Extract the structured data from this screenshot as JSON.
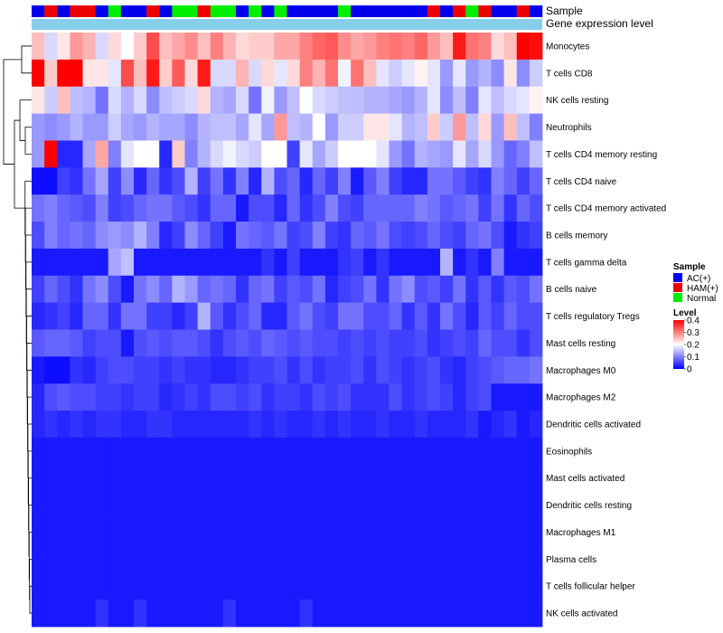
{
  "chart_data": {
    "type": "heatmap",
    "title": "",
    "annotation_labels": {
      "sample": "Sample",
      "group": "Gene expression level"
    },
    "sample_groups": [
      {
        "name": "AC(+)",
        "color": "#0000EE"
      },
      {
        "name": "HAM(+)",
        "color": "#EE0000"
      },
      {
        "name": "Normal",
        "color": "#00EE00"
      }
    ],
    "group_annotation_color": "#87CEEB",
    "sample_annotation": [
      "AC(+)",
      "HAM(+)",
      "AC(+)",
      "HAM(+)",
      "HAM(+)",
      "AC(+)",
      "Normal",
      "AC(+)",
      "AC(+)",
      "HAM(+)",
      "AC(+)",
      "Normal",
      "Normal",
      "HAM(+)",
      "Normal",
      "Normal",
      "AC(+)",
      "Normal",
      "AC(+)",
      "Normal",
      "AC(+)",
      "AC(+)",
      "AC(+)",
      "AC(+)",
      "Normal",
      "AC(+)",
      "AC(+)",
      "AC(+)",
      "AC(+)",
      "AC(+)",
      "AC(+)",
      "HAM(+)",
      "AC(+)",
      "HAM(+)",
      "Normal",
      "HAM(+)",
      "AC(+)",
      "AC(+)",
      "HAM(+)",
      "AC(+)"
    ],
    "rows": [
      "Monocytes",
      "T cells CD8",
      "NK cells resting",
      "Neutrophils",
      "T cells CD4 memory resting",
      "T cells CD4 naive",
      "T cells CD4 memory activated",
      "B cells memory",
      "T cells gamma delta",
      "B cells naive",
      "T cells regulatory  Tregs",
      "Mast cells resting",
      "Macrophages M0",
      "Macrophages M2",
      "Dendritic cells activated",
      "Eosinophils",
      "Mast cells activated",
      "Dendritic cells resting",
      "Macrophages M1",
      "Plasma cells",
      "T cells follicular helper",
      "NK cells activated"
    ],
    "values": [
      [
        0.25,
        0.17,
        0.22,
        0.28,
        0.26,
        0.17,
        0.23,
        0.2,
        0.24,
        0.34,
        0.25,
        0.27,
        0.29,
        0.25,
        0.3,
        0.26,
        0.23,
        0.24,
        0.24,
        0.27,
        0.27,
        0.3,
        0.32,
        0.33,
        0.29,
        0.27,
        0.28,
        0.3,
        0.31,
        0.3,
        0.32,
        0.28,
        0.25,
        0.38,
        0.31,
        0.3,
        0.23,
        0.25,
        0.4,
        0.39
      ],
      [
        0.4,
        0.24,
        0.4,
        0.4,
        0.22,
        0.22,
        0.18,
        0.34,
        0.25,
        0.38,
        0.24,
        0.33,
        0.23,
        0.38,
        0.17,
        0.17,
        0.26,
        0.17,
        0.23,
        0.18,
        0.23,
        0.3,
        0.26,
        0.31,
        0.19,
        0.31,
        0.25,
        0.18,
        0.16,
        0.18,
        0.21,
        0.18,
        0.12,
        0.18,
        0.12,
        0.14,
        0.11,
        0.22,
        0.11,
        0.16
      ],
      [
        0.22,
        0.16,
        0.25,
        0.15,
        0.14,
        0.09,
        0.17,
        0.14,
        0.17,
        0.11,
        0.15,
        0.16,
        0.17,
        0.23,
        0.14,
        0.13,
        0.17,
        0.09,
        0.19,
        0.12,
        0.15,
        0.2,
        0.17,
        0.16,
        0.15,
        0.15,
        0.14,
        0.14,
        0.13,
        0.12,
        0.14,
        0.18,
        0.11,
        0.15,
        0.1,
        0.18,
        0.15,
        0.17,
        0.18,
        0.21
      ],
      [
        0.12,
        0.11,
        0.12,
        0.14,
        0.12,
        0.12,
        0.16,
        0.13,
        0.12,
        0.14,
        0.13,
        0.13,
        0.11,
        0.14,
        0.15,
        0.15,
        0.13,
        0.18,
        0.13,
        0.28,
        0.15,
        0.14,
        0.2,
        0.12,
        0.16,
        0.16,
        0.22,
        0.22,
        0.18,
        0.14,
        0.15,
        0.24,
        0.16,
        0.28,
        0.15,
        0.23,
        0.12,
        0.25,
        0.15,
        0.1
      ],
      [
        0.12,
        0.4,
        0.03,
        0.03,
        0.13,
        0.27,
        0.1,
        0.18,
        0.2,
        0.2,
        0.03,
        0.24,
        0.1,
        0.14,
        0.17,
        0.19,
        0.17,
        0.16,
        0.2,
        0.2,
        0.05,
        0.18,
        0.13,
        0.16,
        0.2,
        0.2,
        0.2,
        0.18,
        0.12,
        0.09,
        0.14,
        0.13,
        0.12,
        0.18,
        0.13,
        0.17,
        0.12,
        0.08,
        0.1,
        0.15
      ],
      [
        0.01,
        0.01,
        0.05,
        0.04,
        0.09,
        0.13,
        0.05,
        0.11,
        0.03,
        0.08,
        0.04,
        0.06,
        0.14,
        0.05,
        0.09,
        0.04,
        0.1,
        0.03,
        0.14,
        0.06,
        0.08,
        0.03,
        0.08,
        0.05,
        0.1,
        0.02,
        0.07,
        0.1,
        0.05,
        0.03,
        0.03,
        0.09,
        0.09,
        0.07,
        0.05,
        0.04,
        0.1,
        0.08,
        0.05,
        0.08
      ],
      [
        0.09,
        0.1,
        0.08,
        0.07,
        0.06,
        0.1,
        0.05,
        0.06,
        0.08,
        0.09,
        0.09,
        0.07,
        0.06,
        0.04,
        0.08,
        0.08,
        0.02,
        0.06,
        0.06,
        0.03,
        0.08,
        0.04,
        0.06,
        0.1,
        0.06,
        0.05,
        0.08,
        0.08,
        0.08,
        0.08,
        0.1,
        0.09,
        0.07,
        0.08,
        0.09,
        0.05,
        0.09,
        0.04,
        0.08,
        0.06
      ],
      [
        0.06,
        0.1,
        0.08,
        0.09,
        0.08,
        0.11,
        0.12,
        0.11,
        0.14,
        0.1,
        0.03,
        0.05,
        0.11,
        0.08,
        0.05,
        0.02,
        0.09,
        0.08,
        0.07,
        0.09,
        0.05,
        0.06,
        0.1,
        0.05,
        0.04,
        0.08,
        0.07,
        0.09,
        0.06,
        0.05,
        0.06,
        0.08,
        0.06,
        0.05,
        0.08,
        0.09,
        0.06,
        0.02,
        0.04,
        0.05
      ],
      [
        0.02,
        0.02,
        0.02,
        0.02,
        0.02,
        0.02,
        0.13,
        0.15,
        0.02,
        0.02,
        0.02,
        0.02,
        0.02,
        0.02,
        0.02,
        0.02,
        0.02,
        0.02,
        0.04,
        0.02,
        0.05,
        0.02,
        0.02,
        0.02,
        0.04,
        0.05,
        0.02,
        0.04,
        0.02,
        0.02,
        0.02,
        0.02,
        0.14,
        0.02,
        0.04,
        0.02,
        0.1,
        0.02,
        0.02,
        0.02
      ],
      [
        0.05,
        0.08,
        0.06,
        0.04,
        0.09,
        0.11,
        0.06,
        0.02,
        0.09,
        0.11,
        0.08,
        0.14,
        0.12,
        0.08,
        0.09,
        0.08,
        0.04,
        0.08,
        0.09,
        0.05,
        0.07,
        0.06,
        0.09,
        0.03,
        0.05,
        0.06,
        0.09,
        0.04,
        0.09,
        0.11,
        0.06,
        0.07,
        0.05,
        0.09,
        0.04,
        0.07,
        0.04,
        0.07,
        0.06,
        0.09
      ],
      [
        0.03,
        0.04,
        0.05,
        0.03,
        0.08,
        0.08,
        0.04,
        0.09,
        0.09,
        0.05,
        0.05,
        0.03,
        0.05,
        0.14,
        0.07,
        0.04,
        0.06,
        0.08,
        0.03,
        0.03,
        0.07,
        0.09,
        0.06,
        0.05,
        0.09,
        0.09,
        0.06,
        0.06,
        0.08,
        0.04,
        0.07,
        0.04,
        0.09,
        0.06,
        0.03,
        0.07,
        0.05,
        0.08,
        0.06,
        0.06
      ],
      [
        0.07,
        0.08,
        0.08,
        0.07,
        0.05,
        0.06,
        0.06,
        0.02,
        0.06,
        0.07,
        0.06,
        0.07,
        0.07,
        0.06,
        0.04,
        0.06,
        0.07,
        0.06,
        0.08,
        0.07,
        0.06,
        0.07,
        0.06,
        0.06,
        0.05,
        0.06,
        0.05,
        0.06,
        0.05,
        0.05,
        0.06,
        0.04,
        0.05,
        0.06,
        0.05,
        0.08,
        0.06,
        0.06,
        0.04,
        0.06
      ],
      [
        0.02,
        0.01,
        0.01,
        0.04,
        0.03,
        0.05,
        0.06,
        0.06,
        0.05,
        0.05,
        0.04,
        0.05,
        0.04,
        0.04,
        0.03,
        0.03,
        0.04,
        0.05,
        0.05,
        0.06,
        0.04,
        0.06,
        0.04,
        0.05,
        0.05,
        0.06,
        0.04,
        0.06,
        0.05,
        0.04,
        0.05,
        0.06,
        0.04,
        0.03,
        0.05,
        0.06,
        0.07,
        0.08,
        0.08,
        0.09
      ],
      [
        0.03,
        0.06,
        0.07,
        0.06,
        0.06,
        0.05,
        0.05,
        0.04,
        0.05,
        0.05,
        0.03,
        0.04,
        0.05,
        0.04,
        0.06,
        0.06,
        0.05,
        0.06,
        0.04,
        0.05,
        0.05,
        0.04,
        0.06,
        0.05,
        0.06,
        0.04,
        0.04,
        0.04,
        0.06,
        0.04,
        0.05,
        0.06,
        0.05,
        0.03,
        0.05,
        0.06,
        0.02,
        0.02,
        0.02,
        0.02
      ],
      [
        0.03,
        0.04,
        0.03,
        0.04,
        0.03,
        0.04,
        0.04,
        0.03,
        0.03,
        0.04,
        0.04,
        0.03,
        0.03,
        0.03,
        0.03,
        0.03,
        0.03,
        0.04,
        0.03,
        0.04,
        0.03,
        0.03,
        0.04,
        0.03,
        0.04,
        0.03,
        0.03,
        0.04,
        0.03,
        0.03,
        0.04,
        0.03,
        0.03,
        0.03,
        0.04,
        0.02,
        0.03,
        0.04,
        0.02,
        0.03
      ],
      [
        0.02,
        0.02,
        0.02,
        0.02,
        0.02,
        0.02,
        0.02,
        0.02,
        0.02,
        0.02,
        0.02,
        0.02,
        0.02,
        0.02,
        0.02,
        0.02,
        0.02,
        0.02,
        0.02,
        0.02,
        0.02,
        0.02,
        0.02,
        0.02,
        0.02,
        0.02,
        0.02,
        0.02,
        0.02,
        0.02,
        0.02,
        0.02,
        0.02,
        0.02,
        0.02,
        0.02,
        0.02,
        0.02,
        0.02,
        0.02
      ],
      [
        0.02,
        0.02,
        0.02,
        0.02,
        0.02,
        0.02,
        0.02,
        0.02,
        0.02,
        0.02,
        0.02,
        0.02,
        0.02,
        0.02,
        0.02,
        0.02,
        0.02,
        0.02,
        0.02,
        0.02,
        0.02,
        0.02,
        0.02,
        0.02,
        0.02,
        0.02,
        0.02,
        0.02,
        0.02,
        0.02,
        0.02,
        0.02,
        0.02,
        0.02,
        0.02,
        0.02,
        0.02,
        0.02,
        0.02,
        0.02
      ],
      [
        0.02,
        0.02,
        0.02,
        0.02,
        0.02,
        0.02,
        0.02,
        0.02,
        0.02,
        0.02,
        0.02,
        0.02,
        0.02,
        0.02,
        0.02,
        0.02,
        0.02,
        0.02,
        0.02,
        0.02,
        0.02,
        0.02,
        0.02,
        0.02,
        0.02,
        0.02,
        0.02,
        0.02,
        0.02,
        0.02,
        0.02,
        0.02,
        0.02,
        0.02,
        0.02,
        0.02,
        0.02,
        0.02,
        0.02,
        0.02
      ],
      [
        0.02,
        0.02,
        0.02,
        0.02,
        0.02,
        0.02,
        0.02,
        0.02,
        0.02,
        0.02,
        0.02,
        0.02,
        0.02,
        0.02,
        0.02,
        0.02,
        0.02,
        0.02,
        0.02,
        0.02,
        0.02,
        0.02,
        0.02,
        0.02,
        0.02,
        0.02,
        0.02,
        0.02,
        0.02,
        0.02,
        0.02,
        0.02,
        0.02,
        0.02,
        0.02,
        0.02,
        0.02,
        0.02,
        0.02,
        0.02
      ],
      [
        0.02,
        0.02,
        0.02,
        0.02,
        0.02,
        0.02,
        0.02,
        0.02,
        0.02,
        0.02,
        0.02,
        0.02,
        0.02,
        0.02,
        0.02,
        0.02,
        0.02,
        0.02,
        0.02,
        0.02,
        0.02,
        0.02,
        0.02,
        0.02,
        0.02,
        0.02,
        0.02,
        0.02,
        0.02,
        0.02,
        0.02,
        0.02,
        0.02,
        0.02,
        0.02,
        0.02,
        0.02,
        0.02,
        0.02,
        0.02
      ],
      [
        0.02,
        0.02,
        0.02,
        0.02,
        0.02,
        0.02,
        0.02,
        0.02,
        0.02,
        0.02,
        0.02,
        0.02,
        0.02,
        0.02,
        0.02,
        0.02,
        0.02,
        0.02,
        0.02,
        0.02,
        0.02,
        0.02,
        0.02,
        0.02,
        0.02,
        0.02,
        0.02,
        0.02,
        0.02,
        0.02,
        0.02,
        0.02,
        0.02,
        0.02,
        0.02,
        0.02,
        0.02,
        0.02,
        0.02,
        0.02
      ],
      [
        0.02,
        0.02,
        0.02,
        0.02,
        0.02,
        0.04,
        0.02,
        0.02,
        0.04,
        0.02,
        0.02,
        0.02,
        0.02,
        0.02,
        0.02,
        0.04,
        0.02,
        0.02,
        0.02,
        0.02,
        0.02,
        0.04,
        0.02,
        0.02,
        0.02,
        0.02,
        0.02,
        0.02,
        0.02,
        0.02,
        0.02,
        0.02,
        0.02,
        0.02,
        0.02,
        0.02,
        0.02,
        0.02,
        0.02,
        0.02
      ]
    ],
    "color_scale": {
      "low": "#0000FF",
      "mid": "#FFFFFF",
      "high": "#FF0000",
      "min": 0,
      "mid_value": 0.2,
      "max": 0.4
    },
    "legend": {
      "sample_title": "Sample",
      "level_title": "Level",
      "level_ticks": [
        "0.4",
        "0.3",
        "0.2",
        "0.1",
        "0"
      ],
      "level_tick_values": [
        0.4,
        0.3,
        0.2,
        0.1,
        0
      ],
      "placement": "right"
    },
    "dendrogram": "row clustering tree on left"
  }
}
